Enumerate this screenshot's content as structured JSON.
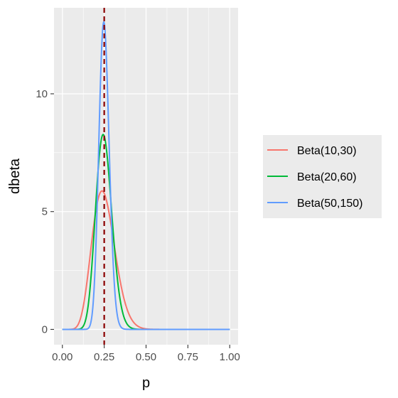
{
  "chart_data": {
    "type": "line",
    "title": "",
    "xlabel": "p",
    "ylabel": "dbeta",
    "xlim": [
      -0.05,
      1.05
    ],
    "ylim": [
      -0.65,
      13.65
    ],
    "x_ticks": [
      0,
      0.25,
      0.5,
      0.75,
      1
    ],
    "x_tick_labels": [
      "0.00",
      "0.25",
      "0.50",
      "0.75",
      "1.00"
    ],
    "y_ticks": [
      0,
      5,
      10
    ],
    "y_tick_labels": [
      "0",
      "5",
      "10"
    ],
    "grid": true,
    "legend_position": "right",
    "series": [
      {
        "name": "Beta(10,30)",
        "alpha": 10,
        "beta": 30,
        "color": "#F8766D"
      },
      {
        "name": "Beta(20,60)",
        "alpha": 20,
        "beta": 60,
        "color": "#00BA38"
      },
      {
        "name": "Beta(50,150)",
        "alpha": 50,
        "beta": 150,
        "color": "#619CFF"
      }
    ],
    "reference_line": {
      "x": 0.25,
      "color": "#8B0000",
      "style": "dashed"
    }
  }
}
